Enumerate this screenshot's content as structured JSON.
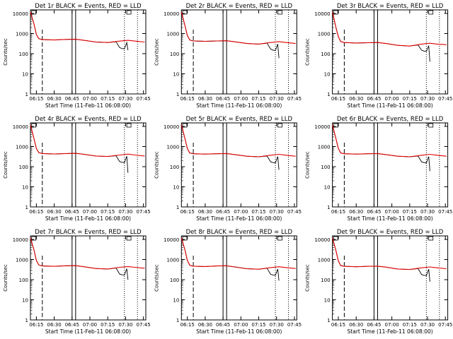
{
  "chart_data": [
    {
      "type": "line",
      "title": "Det 1r BLACK = Events, RED = LLD",
      "ylabel": "Counts/sec",
      "xlabel": "Start Time (11-Feb-11 06:08:00)",
      "x_ticks": [
        "06:15",
        "06:30",
        "06:45",
        "07:00",
        "07:15",
        "07:30",
        "07:45"
      ],
      "y_ticks": [
        "1",
        "10",
        "100",
        "1000",
        "10000"
      ],
      "y_scale": "log",
      "series": [
        {
          "color": "#000000",
          "x": [
            "06:10",
            "06:13",
            "06:15",
            "06:17",
            "06:20",
            "06:30",
            "06:40",
            "06:48",
            "06:55",
            "07:05",
            "07:15",
            "07:22",
            "07:25",
            "07:27",
            "07:29",
            "07:31",
            "07:32"
          ],
          "y": [
            12000,
            3000,
            900,
            560,
            500,
            480,
            510,
            520,
            460,
            380,
            360,
            390,
            200,
            180,
            175,
            360,
            150
          ]
        },
        {
          "color": "#e00000",
          "x": [
            "06:10",
            "06:13",
            "06:15",
            "06:17",
            "06:20",
            "06:30",
            "06:40",
            "06:48",
            "06:55",
            "07:05",
            "07:15",
            "07:25",
            "07:32",
            "07:38",
            "07:46"
          ],
          "y": [
            12000,
            3000,
            900,
            560,
            500,
            480,
            510,
            520,
            460,
            380,
            360,
            420,
            460,
            420,
            380
          ]
        }
      ]
    },
    {
      "type": "line",
      "title": "Det 2r BLACK = Events, RED = LLD",
      "ylabel": "Counts/sec",
      "xlabel": "Start Time (11-Feb-11 06:08:00)",
      "x_ticks": [
        "06:15",
        "06:30",
        "06:45",
        "07:00",
        "07:15",
        "07:30",
        "07:45"
      ],
      "y_ticks": [
        "1",
        "10",
        "100",
        "1000",
        "10000"
      ],
      "y_scale": "log",
      "series": [
        {
          "color": "#000000",
          "x": [
            "06:10",
            "06:13",
            "06:15",
            "06:17",
            "06:20",
            "06:30",
            "06:40",
            "06:48",
            "06:55",
            "07:05",
            "07:15",
            "07:22",
            "07:25",
            "07:27",
            "07:29",
            "07:31",
            "07:32"
          ],
          "y": [
            12000,
            2500,
            800,
            480,
            430,
            410,
            430,
            440,
            390,
            320,
            300,
            330,
            170,
            150,
            145,
            300,
            60
          ]
        },
        {
          "color": "#e00000",
          "x": [
            "06:10",
            "06:13",
            "06:15",
            "06:17",
            "06:20",
            "06:30",
            "06:40",
            "06:48",
            "06:55",
            "07:05",
            "07:15",
            "07:25",
            "07:32",
            "07:38",
            "07:46"
          ],
          "y": [
            12000,
            2500,
            800,
            480,
            430,
            410,
            430,
            440,
            390,
            320,
            300,
            360,
            400,
            360,
            320
          ]
        }
      ]
    },
    {
      "type": "line",
      "title": "Det 3r BLACK = Events, RED = LLD",
      "ylabel": "Counts/sec",
      "xlabel": "Start Time (11-Feb-11 06:08:00)",
      "x_ticks": [
        "06:15",
        "06:30",
        "06:45",
        "07:00",
        "07:15",
        "07:30",
        "07:45"
      ],
      "y_ticks": [
        "1",
        "10",
        "100",
        "1000",
        "10000"
      ],
      "y_scale": "log",
      "series": [
        {
          "color": "#000000",
          "x": [
            "06:10",
            "06:13",
            "06:15",
            "06:17",
            "06:20",
            "06:30",
            "06:40",
            "06:48",
            "06:55",
            "07:05",
            "07:15",
            "07:22",
            "07:25",
            "07:27",
            "07:29",
            "07:31",
            "07:32"
          ],
          "y": [
            12000,
            2000,
            700,
            400,
            360,
            340,
            350,
            360,
            320,
            260,
            240,
            270,
            150,
            135,
            130,
            250,
            40
          ]
        },
        {
          "color": "#e00000",
          "x": [
            "06:10",
            "06:13",
            "06:15",
            "06:17",
            "06:20",
            "06:30",
            "06:40",
            "06:48",
            "06:55",
            "07:05",
            "07:15",
            "07:25",
            "07:32",
            "07:38",
            "07:46"
          ],
          "y": [
            12000,
            2000,
            700,
            400,
            360,
            340,
            350,
            360,
            320,
            260,
            240,
            300,
            330,
            300,
            280
          ]
        }
      ]
    },
    {
      "type": "line",
      "title": "Det 4r BLACK = Events, RED = LLD",
      "ylabel": "Counts/sec",
      "xlabel": "Start Time (11-Feb-11 06:08:00)",
      "x_ticks": [
        "06:15",
        "06:30",
        "06:45",
        "07:00",
        "07:15",
        "07:30",
        "07:45"
      ],
      "y_ticks": [
        "1",
        "10",
        "100",
        "1000",
        "10000"
      ],
      "y_scale": "log",
      "series": [
        {
          "color": "#000000",
          "x": [
            "06:10",
            "06:13",
            "06:15",
            "06:17",
            "06:20",
            "06:30",
            "06:40",
            "06:48",
            "06:55",
            "07:05",
            "07:15",
            "07:22",
            "07:25",
            "07:27",
            "07:29",
            "07:31",
            "07:32"
          ],
          "y": [
            12000,
            2500,
            800,
            500,
            450,
            430,
            450,
            460,
            410,
            340,
            320,
            350,
            180,
            165,
            160,
            330,
            50
          ]
        },
        {
          "color": "#e00000",
          "x": [
            "06:10",
            "06:13",
            "06:15",
            "06:17",
            "06:20",
            "06:30",
            "06:40",
            "06:48",
            "06:55",
            "07:05",
            "07:15",
            "07:25",
            "07:32",
            "07:38",
            "07:46"
          ],
          "y": [
            12000,
            2500,
            800,
            500,
            450,
            430,
            450,
            460,
            410,
            340,
            320,
            380,
            420,
            380,
            340
          ]
        }
      ]
    },
    {
      "type": "line",
      "title": "Det 5r BLACK = Events, RED = LLD",
      "ylabel": "Counts/sec",
      "xlabel": "Start Time (11-Feb-11 06:08:00)",
      "x_ticks": [
        "06:15",
        "06:30",
        "06:45",
        "07:00",
        "07:15",
        "07:30",
        "07:45"
      ],
      "y_ticks": [
        "1",
        "10",
        "100",
        "1000",
        "10000"
      ],
      "y_scale": "log",
      "series": [
        {
          "color": "#000000",
          "x": [
            "06:10",
            "06:13",
            "06:15",
            "06:17",
            "06:20",
            "06:30",
            "06:40",
            "06:48",
            "06:55",
            "07:05",
            "07:15",
            "07:22",
            "07:25",
            "07:27",
            "07:29",
            "07:31",
            "07:32"
          ],
          "y": [
            12000,
            2500,
            800,
            480,
            440,
            420,
            440,
            450,
            400,
            330,
            310,
            340,
            175,
            160,
            155,
            320,
            70
          ]
        },
        {
          "color": "#e00000",
          "x": [
            "06:10",
            "06:13",
            "06:15",
            "06:17",
            "06:20",
            "06:30",
            "06:40",
            "06:48",
            "06:55",
            "07:05",
            "07:15",
            "07:25",
            "07:32",
            "07:38",
            "07:46"
          ],
          "y": [
            12000,
            2500,
            800,
            480,
            440,
            420,
            440,
            450,
            400,
            330,
            310,
            370,
            410,
            370,
            330
          ]
        }
      ]
    },
    {
      "type": "line",
      "title": "Det 6r BLACK = Events, RED = LLD",
      "ylabel": "Counts/sec",
      "xlabel": "Start Time (11-Feb-11 06:08:00)",
      "x_ticks": [
        "06:15",
        "06:30",
        "06:45",
        "07:00",
        "07:15",
        "07:30",
        "07:45"
      ],
      "y_ticks": [
        "1",
        "10",
        "100",
        "1000",
        "10000"
      ],
      "y_scale": "log",
      "series": [
        {
          "color": "#000000",
          "x": [
            "06:10",
            "06:13",
            "06:15",
            "06:17",
            "06:20",
            "06:30",
            "06:40",
            "06:48",
            "06:55",
            "07:05",
            "07:15",
            "07:22",
            "07:25",
            "07:27",
            "07:29",
            "07:31",
            "07:32"
          ],
          "y": [
            12000,
            2500,
            800,
            480,
            440,
            420,
            440,
            450,
            400,
            330,
            310,
            340,
            175,
            160,
            155,
            320,
            60
          ]
        },
        {
          "color": "#e00000",
          "x": [
            "06:10",
            "06:13",
            "06:15",
            "06:17",
            "06:20",
            "06:30",
            "06:40",
            "06:48",
            "06:55",
            "07:05",
            "07:15",
            "07:25",
            "07:32",
            "07:38",
            "07:46"
          ],
          "y": [
            12000,
            2500,
            800,
            480,
            440,
            420,
            440,
            450,
            400,
            330,
            310,
            370,
            410,
            370,
            330
          ]
        }
      ]
    },
    {
      "type": "line",
      "title": "Det 7r BLACK = Events, RED = LLD",
      "ylabel": "Counts/sec",
      "xlabel": "Start Time (11-Feb-11 06:08:00)",
      "x_ticks": [
        "06:15",
        "06:30",
        "06:45",
        "07:00",
        "07:15",
        "07:30",
        "07:45"
      ],
      "y_ticks": [
        "1",
        "10",
        "100",
        "1000",
        "10000"
      ],
      "y_scale": "log",
      "series": [
        {
          "color": "#000000",
          "x": [
            "06:10",
            "06:13",
            "06:15",
            "06:17",
            "06:20",
            "06:30",
            "06:40",
            "06:48",
            "06:55",
            "07:05",
            "07:15",
            "07:22",
            "07:25",
            "07:27",
            "07:29",
            "07:31",
            "07:32"
          ],
          "y": [
            12000,
            3000,
            900,
            540,
            480,
            460,
            490,
            500,
            440,
            360,
            340,
            380,
            190,
            175,
            170,
            350,
            100
          ]
        },
        {
          "color": "#e00000",
          "x": [
            "06:10",
            "06:13",
            "06:15",
            "06:17",
            "06:20",
            "06:30",
            "06:40",
            "06:48",
            "06:55",
            "07:05",
            "07:15",
            "07:25",
            "07:32",
            "07:38",
            "07:46"
          ],
          "y": [
            12000,
            3000,
            900,
            540,
            480,
            460,
            490,
            500,
            440,
            360,
            340,
            410,
            450,
            410,
            370
          ]
        }
      ]
    },
    {
      "type": "line",
      "title": "Det 8r BLACK = Events, RED = LLD",
      "ylabel": "Counts/sec",
      "xlabel": "Start Time (11-Feb-11 06:08:00)",
      "x_ticks": [
        "06:15",
        "06:30",
        "06:45",
        "07:00",
        "07:15",
        "07:30",
        "07:45"
      ],
      "y_ticks": [
        "1",
        "10",
        "100",
        "1000",
        "10000"
      ],
      "y_scale": "log",
      "series": [
        {
          "color": "#000000",
          "x": [
            "06:10",
            "06:13",
            "06:15",
            "06:17",
            "06:20",
            "06:30",
            "06:40",
            "06:48",
            "06:55",
            "07:05",
            "07:15",
            "07:22",
            "07:25",
            "07:27",
            "07:29",
            "07:31",
            "07:32"
          ],
          "y": [
            12000,
            3000,
            900,
            520,
            470,
            450,
            480,
            490,
            430,
            350,
            330,
            370,
            185,
            170,
            165,
            340,
            90
          ]
        },
        {
          "color": "#e00000",
          "x": [
            "06:10",
            "06:13",
            "06:15",
            "06:17",
            "06:20",
            "06:30",
            "06:40",
            "06:48",
            "06:55",
            "07:05",
            "07:15",
            "07:25",
            "07:32",
            "07:38",
            "07:46"
          ],
          "y": [
            12000,
            3000,
            900,
            520,
            470,
            450,
            480,
            490,
            430,
            350,
            330,
            400,
            440,
            400,
            360
          ]
        }
      ]
    },
    {
      "type": "line",
      "title": "Det 9r BLACK = Events, RED = LLD",
      "ylabel": "Counts/sec",
      "xlabel": "Start Time (11-Feb-11 06:08:00)",
      "x_ticks": [
        "06:15",
        "06:30",
        "06:45",
        "07:00",
        "07:15",
        "07:30",
        "07:45"
      ],
      "y_ticks": [
        "1",
        "10",
        "100",
        "1000",
        "10000"
      ],
      "y_scale": "log",
      "series": [
        {
          "color": "#000000",
          "x": [
            "06:10",
            "06:13",
            "06:15",
            "06:17",
            "06:20",
            "06:30",
            "06:40",
            "06:48",
            "06:55",
            "07:05",
            "07:15",
            "07:22",
            "07:25",
            "07:27",
            "07:29",
            "07:31",
            "07:32"
          ],
          "y": [
            12000,
            2800,
            850,
            500,
            460,
            440,
            460,
            470,
            420,
            340,
            320,
            355,
            180,
            165,
            160,
            330,
            80
          ]
        },
        {
          "color": "#e00000",
          "x": [
            "06:10",
            "06:13",
            "06:15",
            "06:17",
            "06:20",
            "06:30",
            "06:40",
            "06:48",
            "06:55",
            "07:05",
            "07:15",
            "07:25",
            "07:32",
            "07:38",
            "07:46"
          ],
          "y": [
            12000,
            2800,
            850,
            500,
            460,
            440,
            460,
            470,
            420,
            340,
            320,
            390,
            430,
            390,
            350
          ]
        }
      ]
    }
  ]
}
